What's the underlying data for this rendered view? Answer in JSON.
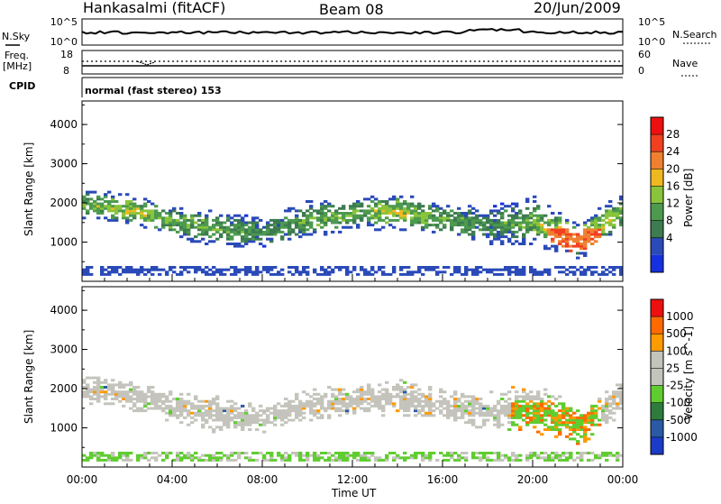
{
  "header": {
    "station": "Hankasalmi (fitACF)",
    "beam": "Beam 08",
    "date": "20/Jun/2009"
  },
  "noise_panel": {
    "left_label": "N.Sky",
    "left_ticks": [
      "10^5",
      "10^0"
    ],
    "right_ticks": [
      "10^5",
      "10^0"
    ],
    "right_label": "N.Search"
  },
  "freq_panel": {
    "label_line1": "Freq.",
    "label_line2": "[MHz]",
    "left_ticks": [
      "18",
      "8"
    ],
    "right_ticks": [
      "60",
      "0"
    ],
    "right_label": "Nave",
    "cpid_label": "CPID",
    "mode_text": "normal (fast stereo) 153"
  },
  "colors": {
    "power_scale": [
      "#1530e0",
      "#2a4ab8",
      "#3d7b50",
      "#4d9a4f",
      "#8ac43a",
      "#f0b820",
      "#f08030",
      "#f04020",
      "#ee1010"
    ],
    "velocity_scale": [
      "#1a3cc8",
      "#2a5aa6",
      "#2e7b3e",
      "#5fcd30",
      "#c4c4bc",
      "#c4c4bc",
      "#ff9a00",
      "#ff6a00",
      "#ee1010"
    ],
    "ground_scatter": "#c4c4bc"
  },
  "chart_data": [
    {
      "type": "heatmap",
      "title": "",
      "quantity": "Power",
      "colorbar_label": "Power [dB]",
      "colorbar_ticks": [
        "28",
        "24",
        "20",
        "16",
        "12",
        "8",
        "4"
      ],
      "xlabel": "",
      "ylabel": "Slant Range [km]",
      "xlim": [
        "00:00",
        "00:00"
      ],
      "ylim": [
        0,
        4600
      ],
      "yticks": [
        "4000",
        "3000",
        "2000",
        "1000"
      ],
      "scatter_bands": [
        {
          "t": 0,
          "center": 1950,
          "half_width": 250,
          "level": 16
        },
        {
          "t": 2,
          "center": 1800,
          "half_width": 250,
          "level": 20
        },
        {
          "t": 4,
          "center": 1500,
          "half_width": 250,
          "level": 16
        },
        {
          "t": 6,
          "center": 1300,
          "half_width": 300,
          "level": 16
        },
        {
          "t": 8,
          "center": 1200,
          "half_width": 250,
          "level": 12
        },
        {
          "t": 10,
          "center": 1550,
          "half_width": 300,
          "level": 16
        },
        {
          "t": 12,
          "center": 1700,
          "half_width": 250,
          "level": 16
        },
        {
          "t": 14,
          "center": 1750,
          "half_width": 300,
          "level": 20
        },
        {
          "t": 16,
          "center": 1550,
          "half_width": 250,
          "level": 16
        },
        {
          "t": 18,
          "center": 1400,
          "half_width": 300,
          "level": 12
        },
        {
          "t": 20,
          "center": 1500,
          "half_width": 400,
          "level": 16
        },
        {
          "t": 22,
          "center": 1000,
          "half_width": 300,
          "level": 24
        },
        {
          "t": 24,
          "center": 1800,
          "half_width": 300,
          "level": 16
        }
      ]
    },
    {
      "type": "heatmap",
      "title": "",
      "quantity": "Velocity",
      "colorbar_label": "Velocity [m s^-1]",
      "colorbar_ticks": [
        "1000",
        "500",
        "100",
        "25",
        "-25",
        "-100",
        "-500",
        "-1000"
      ],
      "xlabel": "Time UT",
      "ylabel": "Slant Range [km]",
      "xlim": [
        "00:00",
        "00:00"
      ],
      "ylim": [
        0,
        4600
      ],
      "xticks": [
        "00:00",
        "04:00",
        "08:00",
        "12:00",
        "16:00",
        "20:00",
        "00:00"
      ],
      "yticks": [
        "4000",
        "3000",
        "2000",
        "1000"
      ]
    }
  ]
}
